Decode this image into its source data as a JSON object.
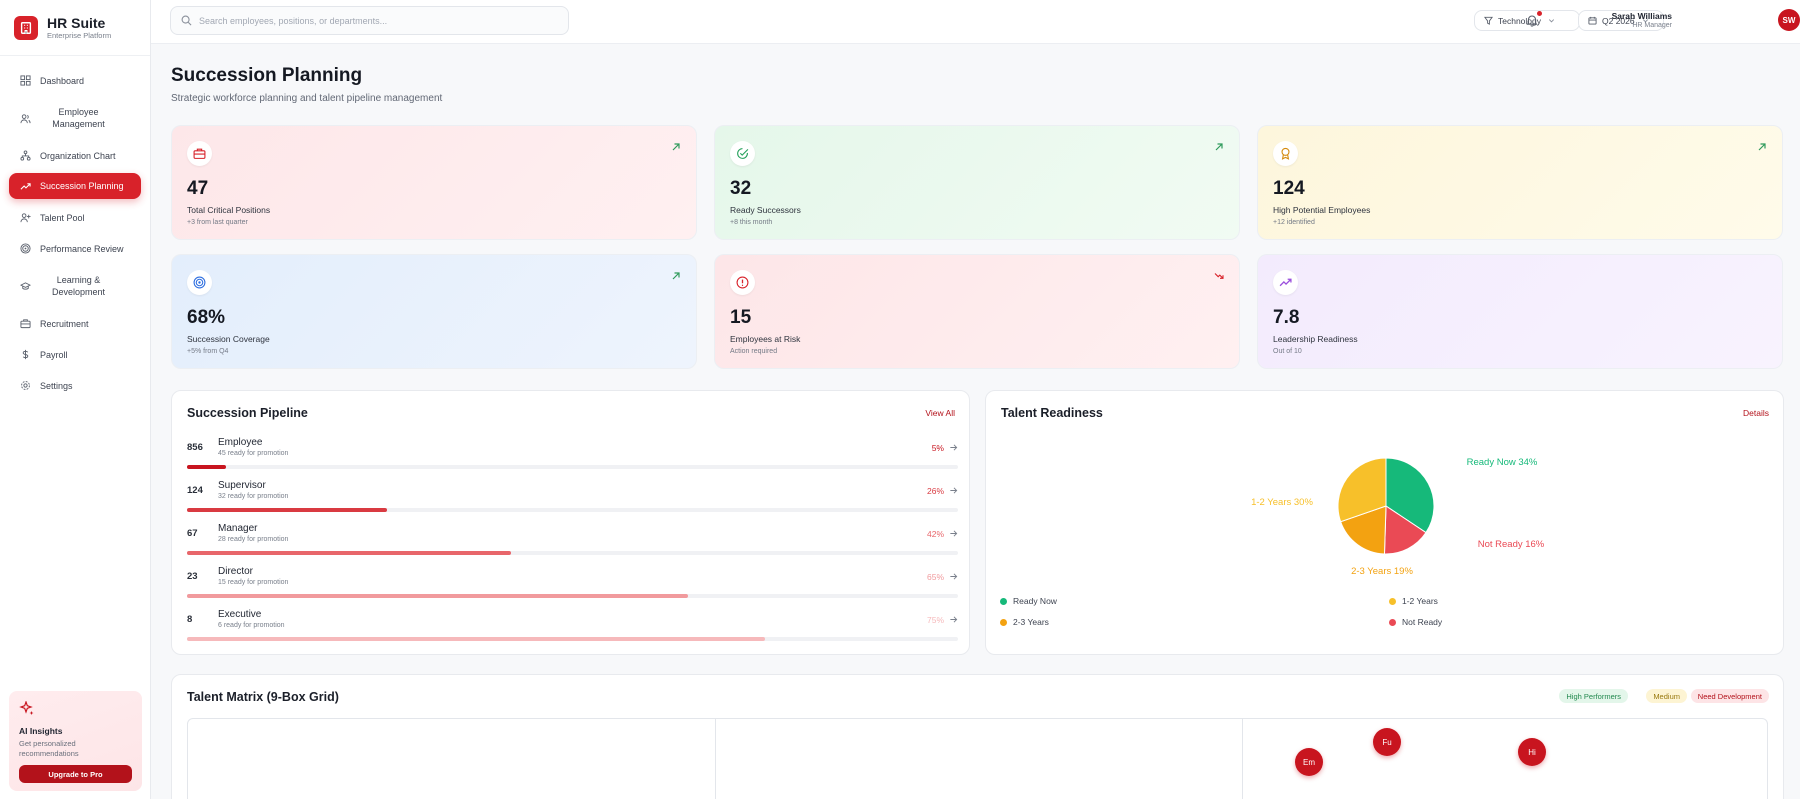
{
  "brand": {
    "title": "HR Suite",
    "subtitle": "Enterprise Platform"
  },
  "nav": {
    "items": [
      {
        "label": "Dashboard",
        "icon": "dashboard-icon"
      },
      {
        "label": "Employee Management",
        "icon": "users-icon"
      },
      {
        "label": "Organization Chart",
        "icon": "org-chart-icon"
      },
      {
        "label": "Succession Planning",
        "icon": "trending-up-icon",
        "active": true
      },
      {
        "label": "Talent Pool",
        "icon": "user-plus-icon"
      },
      {
        "label": "Performance Review",
        "icon": "target-icon"
      },
      {
        "label": "Learning & Development",
        "icon": "graduation-cap-icon"
      },
      {
        "label": "Recruitment",
        "icon": "briefcase-icon"
      },
      {
        "label": "Payroll",
        "icon": "dollar-icon"
      },
      {
        "label": "Settings",
        "icon": "gear-icon"
      }
    ]
  },
  "ai": {
    "title": "AI Insights",
    "text": "Get personalized recommendations",
    "button": "Upgrade to Pro"
  },
  "topbar": {
    "search_placeholder": "Search employees, positions, or departments...",
    "department_filter": "Technology",
    "period_filter": "Q2 2026",
    "user_name": "Sarah Williams",
    "user_role": "HR Manager",
    "user_initials": "SW"
  },
  "page": {
    "title": "Succession Planning",
    "subtitle": "Strategic workforce planning and talent pipeline management"
  },
  "stats": [
    {
      "value": "47",
      "label": "Total Critical Positions",
      "sub": "+3 from last quarter",
      "icon": "briefcase-icon",
      "trend": "up"
    },
    {
      "value": "32",
      "label": "Ready Successors",
      "sub": "+8 this month",
      "icon": "check-circle-icon",
      "trend": "up"
    },
    {
      "value": "124",
      "label": "High Potential Employees",
      "sub": "+12 identified",
      "icon": "award-icon",
      "trend": "up"
    },
    {
      "value": "68%",
      "label": "Succession Coverage",
      "sub": "+5% from Q4",
      "icon": "target-icon",
      "trend": "up"
    },
    {
      "value": "15",
      "label": "Employees at Risk",
      "sub": "Action required",
      "icon": "alert-circle-icon",
      "trend": "down"
    },
    {
      "value": "7.8",
      "label": "Leadership Readiness",
      "sub": "Out of 10",
      "icon": "trending-up-icon",
      "trend": "none"
    }
  ],
  "pipeline": {
    "title": "Succession Pipeline",
    "link": "View All",
    "rows": [
      {
        "count": "856",
        "name": "Employee",
        "ready": "45 ready for promotion",
        "pct": "5%",
        "fill": 0.05,
        "color": "#c8151f"
      },
      {
        "count": "124",
        "name": "Supervisor",
        "ready": "32 ready for promotion",
        "pct": "26%",
        "fill": 0.26,
        "color": "#d93a41"
      },
      {
        "count": "67",
        "name": "Manager",
        "ready": "28 ready for promotion",
        "pct": "42%",
        "fill": 0.42,
        "color": "#e8666b"
      },
      {
        "count": "23",
        "name": "Director",
        "ready": "15 ready for promotion",
        "pct": "65%",
        "fill": 0.65,
        "color": "#f19a9d"
      },
      {
        "count": "8",
        "name": "Executive",
        "ready": "6 ready for promotion",
        "pct": "75%",
        "fill": 0.75,
        "color": "#f6b9bb"
      }
    ]
  },
  "readiness": {
    "title": "Talent Readiness",
    "link": "Details",
    "chart_data": {
      "type": "pie",
      "slices": [
        {
          "name": "Ready Now",
          "value": 34,
          "label": "Ready Now 34%",
          "color": "#16b97a"
        },
        {
          "name": "Not Ready",
          "value": 16,
          "label": "Not Ready 16%",
          "color": "#ea4a55"
        },
        {
          "name": "2-3 Years",
          "value": 19,
          "label": "2-3 Years 19%",
          "color": "#f3a211"
        },
        {
          "name": "1-2 Years",
          "value": 30,
          "label": "1-2 Years 30%",
          "color": "#f7c02a"
        }
      ]
    },
    "legend": [
      {
        "label": "Ready Now",
        "color": "#16b97a"
      },
      {
        "label": "1-2 Years",
        "color": "#f7c02a"
      },
      {
        "label": "2-3 Years",
        "color": "#f3a211"
      },
      {
        "label": "Not Ready",
        "color": "#ea4a55"
      }
    ]
  },
  "matrix": {
    "title": "Talent Matrix (9-Box Grid)",
    "tags": [
      {
        "label": "High Performers",
        "bg": "#e3f6ea",
        "fg": "#23894f"
      },
      {
        "label": "Medium",
        "bg": "#fdf4d3",
        "fg": "#9a7a10"
      },
      {
        "label": "Need Development",
        "bg": "#fde4e6",
        "fg": "#b3121b"
      }
    ],
    "bubbles": [
      {
        "initials": "Em"
      },
      {
        "initials": "Fu"
      },
      {
        "initials": "Hi"
      }
    ]
  },
  "colors": {
    "accent": "#d8222a",
    "accent_dark": "#b3121b"
  }
}
